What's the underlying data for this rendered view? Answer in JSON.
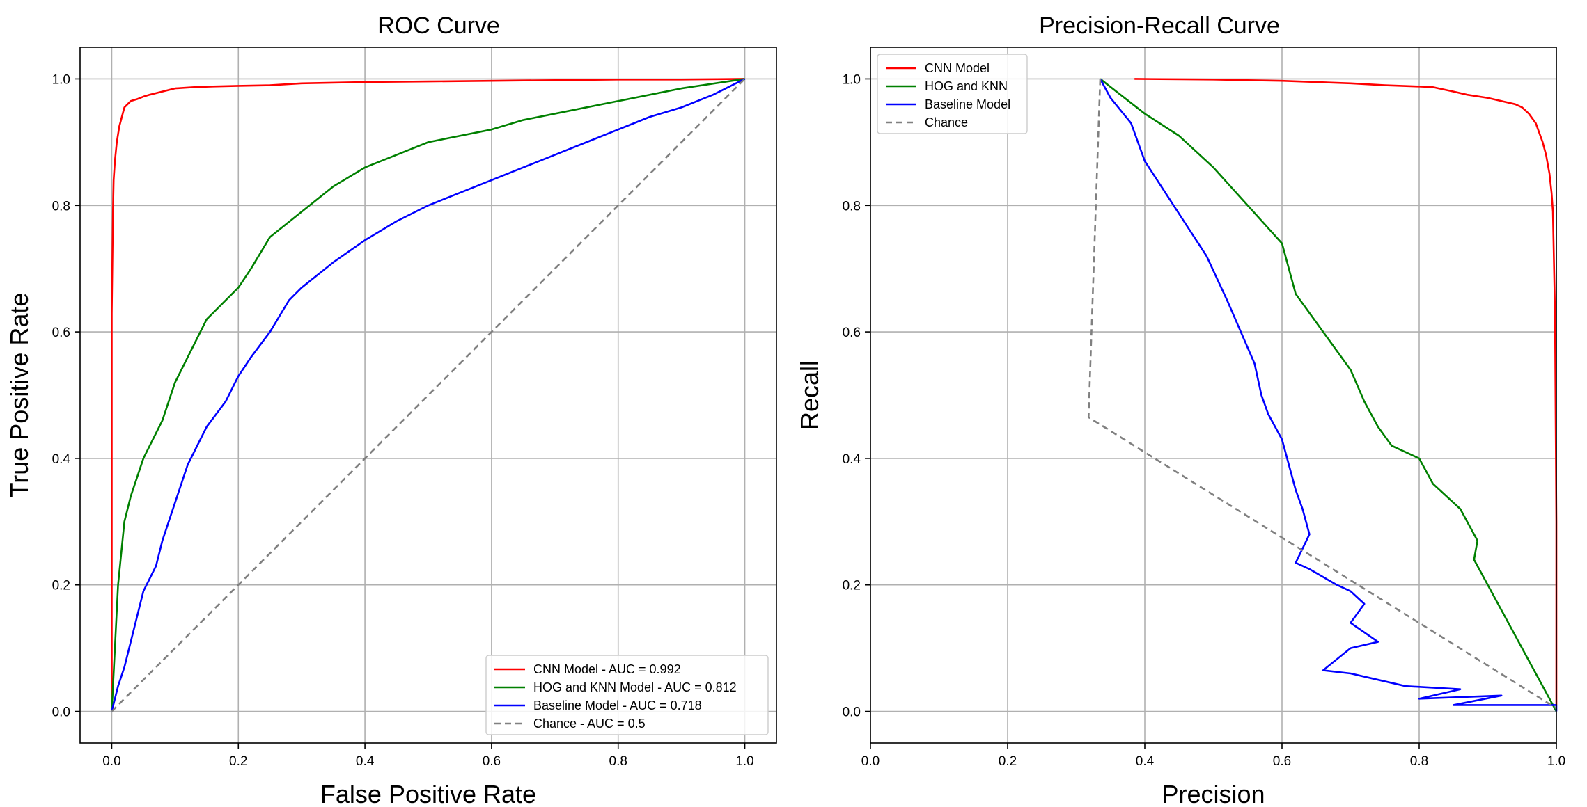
{
  "figure": {
    "colors": {
      "cnn": "#ff0000",
      "hog": "#008000",
      "baseline": "#0000ff",
      "chance": "#808080"
    }
  },
  "chart_data": [
    {
      "type": "line",
      "title": "ROC Curve",
      "xlabel": "False Positive Rate",
      "ylabel": "True Positive Rate",
      "xlim": [
        -0.05,
        1.05
      ],
      "ylim": [
        -0.05,
        1.05
      ],
      "xticks": [
        0.0,
        0.2,
        0.4,
        0.6,
        0.8,
        1.0
      ],
      "yticks": [
        0.0,
        0.2,
        0.4,
        0.6,
        0.8,
        1.0
      ],
      "tick_labels_x": [
        "0.0",
        "0.2",
        "0.4",
        "0.6",
        "0.8",
        "1.0"
      ],
      "tick_labels_y": [
        "0.0",
        "0.2",
        "0.4",
        "0.6",
        "0.8",
        "1.0"
      ],
      "grid": true,
      "legend_position": "bottom-right",
      "series": [
        {
          "key": "cnn",
          "name": "CNN Model - AUC = 0.992",
          "color": "#ff0000",
          "dashed": false,
          "x": [
            0,
            0,
            0.002,
            0.003,
            0.005,
            0.008,
            0.012,
            0.016,
            0.02,
            0.025,
            0.03,
            0.04,
            0.05,
            0.06,
            0.08,
            0.1,
            0.13,
            0.16,
            0.2,
            0.25,
            0.3,
            0.4,
            0.5,
            0.6,
            0.7,
            0.8,
            0.9,
            1.0
          ],
          "y": [
            0,
            0.63,
            0.79,
            0.84,
            0.87,
            0.9,
            0.925,
            0.94,
            0.955,
            0.96,
            0.965,
            0.968,
            0.972,
            0.975,
            0.98,
            0.985,
            0.987,
            0.988,
            0.989,
            0.99,
            0.993,
            0.995,
            0.996,
            0.997,
            0.998,
            0.999,
            0.999,
            1.0
          ]
        },
        {
          "key": "hog",
          "name": "HOG and KNN Model - AUC = 0.812",
          "color": "#008000",
          "dashed": false,
          "x": [
            0,
            0.01,
            0.02,
            0.03,
            0.04,
            0.05,
            0.06,
            0.08,
            0.1,
            0.12,
            0.15,
            0.18,
            0.2,
            0.22,
            0.25,
            0.3,
            0.35,
            0.4,
            0.45,
            0.5,
            0.55,
            0.6,
            0.65,
            0.7,
            0.8,
            0.9,
            1.0
          ],
          "y": [
            0,
            0.2,
            0.3,
            0.34,
            0.37,
            0.4,
            0.42,
            0.46,
            0.52,
            0.56,
            0.62,
            0.65,
            0.67,
            0.7,
            0.75,
            0.79,
            0.83,
            0.86,
            0.88,
            0.9,
            0.91,
            0.92,
            0.935,
            0.945,
            0.965,
            0.985,
            1.0
          ]
        },
        {
          "key": "baseline",
          "name": "Baseline Model - AUC = 0.718",
          "color": "#0000ff",
          "dashed": false,
          "x": [
            0,
            0.01,
            0.02,
            0.03,
            0.04,
            0.05,
            0.06,
            0.07,
            0.08,
            0.1,
            0.12,
            0.15,
            0.18,
            0.2,
            0.22,
            0.25,
            0.28,
            0.3,
            0.35,
            0.4,
            0.45,
            0.5,
            0.55,
            0.6,
            0.65,
            0.7,
            0.75,
            0.8,
            0.85,
            0.9,
            0.95,
            1.0
          ],
          "y": [
            0,
            0.04,
            0.07,
            0.11,
            0.15,
            0.19,
            0.21,
            0.23,
            0.27,
            0.33,
            0.39,
            0.45,
            0.49,
            0.53,
            0.56,
            0.6,
            0.65,
            0.67,
            0.71,
            0.745,
            0.775,
            0.8,
            0.82,
            0.84,
            0.86,
            0.88,
            0.9,
            0.92,
            0.94,
            0.955,
            0.975,
            1.0
          ]
        },
        {
          "key": "chance",
          "name": "Chance - AUC = 0.5",
          "color": "#808080",
          "dashed": true,
          "x": [
            0,
            1
          ],
          "y": [
            0,
            1
          ]
        }
      ]
    },
    {
      "type": "line",
      "title": "Precision-Recall Curve",
      "xlabel": "Precision",
      "ylabel": "Recall",
      "xlim": [
        0.0,
        1.0
      ],
      "ylim": [
        -0.05,
        1.05
      ],
      "xticks": [
        0.0,
        0.2,
        0.4,
        0.6,
        0.8,
        1.0
      ],
      "yticks": [
        0.0,
        0.2,
        0.4,
        0.6,
        0.8,
        1.0
      ],
      "tick_labels_x": [
        "0.0",
        "0.2",
        "0.4",
        "0.6",
        "0.8",
        "1.0"
      ],
      "tick_labels_y": [
        "0.0",
        "0.2",
        "0.4",
        "0.6",
        "0.8",
        "1.0"
      ],
      "grid": true,
      "legend_position": "top-left",
      "series": [
        {
          "key": "cnn",
          "name": "CNN Model",
          "color": "#ff0000",
          "dashed": false,
          "x": [
            0.385,
            0.5,
            0.6,
            0.7,
            0.75,
            0.8,
            0.82,
            0.85,
            0.87,
            0.9,
            0.92,
            0.94,
            0.95,
            0.96,
            0.97,
            0.98,
            0.985,
            0.99,
            0.993,
            0.995,
            0.998,
            1.0,
            1.0
          ],
          "y": [
            1.0,
            0.999,
            0.997,
            0.993,
            0.99,
            0.988,
            0.987,
            0.98,
            0.975,
            0.97,
            0.965,
            0.96,
            0.955,
            0.945,
            0.93,
            0.9,
            0.88,
            0.85,
            0.82,
            0.79,
            0.63,
            0.3,
            0.01
          ]
        },
        {
          "key": "hog",
          "name": "HOG and KNN",
          "color": "#008000",
          "dashed": false,
          "x": [
            0.335,
            0.4,
            0.45,
            0.5,
            0.55,
            0.6,
            0.62,
            0.66,
            0.7,
            0.72,
            0.74,
            0.76,
            0.8,
            0.82,
            0.84,
            0.86,
            0.87,
            0.88,
            0.885,
            0.88,
            1.0
          ],
          "y": [
            1.0,
            0.945,
            0.91,
            0.86,
            0.8,
            0.74,
            0.66,
            0.6,
            0.54,
            0.49,
            0.45,
            0.42,
            0.4,
            0.36,
            0.34,
            0.32,
            0.3,
            0.28,
            0.27,
            0.24,
            0.0
          ]
        },
        {
          "key": "baseline",
          "name": "Baseline Model",
          "color": "#0000ff",
          "dashed": false,
          "x": [
            0.335,
            0.35,
            0.38,
            0.4,
            0.43,
            0.46,
            0.49,
            0.52,
            0.54,
            0.56,
            0.57,
            0.58,
            0.6,
            0.61,
            0.62,
            0.63,
            0.64,
            0.62,
            0.64,
            0.68,
            0.7,
            0.72,
            0.7,
            0.74,
            0.7,
            0.66,
            0.7,
            0.72,
            0.78,
            0.86,
            0.8,
            0.92,
            0.85,
            1.0,
            1.0
          ],
          "y": [
            1.0,
            0.97,
            0.93,
            0.87,
            0.82,
            0.77,
            0.72,
            0.65,
            0.6,
            0.55,
            0.5,
            0.47,
            0.43,
            0.39,
            0.35,
            0.32,
            0.28,
            0.235,
            0.225,
            0.2,
            0.19,
            0.17,
            0.14,
            0.11,
            0.1,
            0.065,
            0.06,
            0.055,
            0.04,
            0.035,
            0.02,
            0.025,
            0.01,
            0.01,
            0.0
          ]
        },
        {
          "key": "chance",
          "name": "Chance",
          "color": "#808080",
          "dashed": true,
          "x": [
            0.335,
            0.318,
            1.0
          ],
          "y": [
            1.0,
            0.465,
            0.005
          ]
        }
      ]
    }
  ]
}
